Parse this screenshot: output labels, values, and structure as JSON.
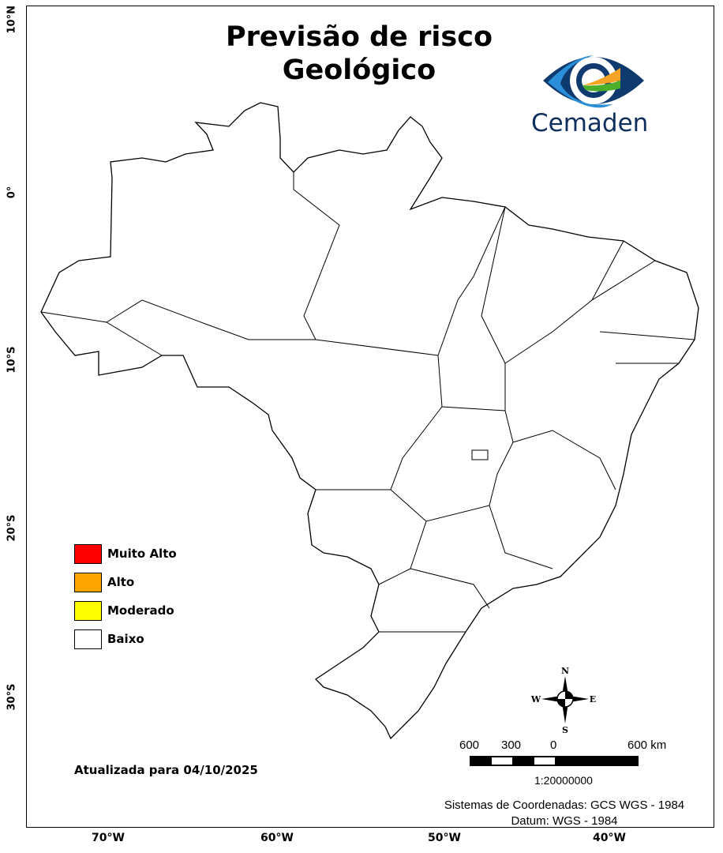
{
  "title_line1": "Previsão de risco",
  "title_line2": "Geológico",
  "logo": {
    "text": "Cemaden",
    "colors": [
      "#0e3a6e",
      "#2a8fd8",
      "#f4a325",
      "#4caf2a"
    ]
  },
  "axes": {
    "lat_labels": [
      "10°N",
      "0°",
      "10°S",
      "20°S",
      "30°S"
    ],
    "lon_labels": [
      "70°W",
      "60°W",
      "50°W",
      "40°W"
    ]
  },
  "legend": [
    {
      "label": "Muito Alto",
      "color": "#ff0000"
    },
    {
      "label": "Alto",
      "color": "#ffa500"
    },
    {
      "label": "Moderado",
      "color": "#ffff00"
    },
    {
      "label": "Baixo",
      "color": "#ffffff"
    }
  ],
  "map_fill_level": "Baixo",
  "updated": "Atualizada para 04/10/2025",
  "compass": {
    "n": "N",
    "s": "S",
    "e": "E",
    "w": "W"
  },
  "scale": {
    "labels": [
      "600",
      "300",
      "0",
      "600 km"
    ],
    "ratio": "1:20000000"
  },
  "footer": {
    "crs": "Sistemas de Coordenadas: GCS WGS - 1984",
    "datum": "Datum: WGS - 1984"
  }
}
